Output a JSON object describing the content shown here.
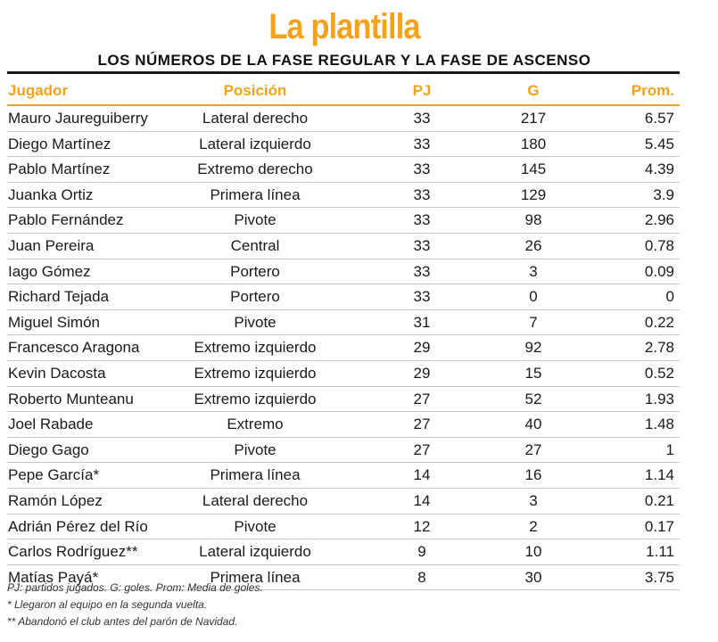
{
  "title": "La plantilla",
  "subtitle": "LOS NÚMEROS DE LA FASE REGULAR Y LA FASE DE ASCENSO",
  "colors": {
    "accent": "#f5a21b",
    "text": "#1a1a1a",
    "divider": "#c9c9c9"
  },
  "table": {
    "headers": {
      "player": "Jugador",
      "position": "Posición",
      "pj": "PJ",
      "g": "G",
      "prom": "Prom."
    },
    "rows": [
      {
        "player": "Mauro Jaureguiberry",
        "position": "Lateral derecho",
        "pj": "33",
        "g": "217",
        "prom": "6.57"
      },
      {
        "player": "Diego Martínez",
        "position": "Lateral izquierdo",
        "pj": "33",
        "g": "180",
        "prom": "5.45"
      },
      {
        "player": "Pablo Martínez",
        "position": "Extremo derecho",
        "pj": "33",
        "g": "145",
        "prom": "4.39"
      },
      {
        "player": "Juanka Ortiz",
        "position": "Primera línea",
        "pj": "33",
        "g": "129",
        "prom": "3.9"
      },
      {
        "player": "Pablo Fernández",
        "position": "Pivote",
        "pj": "33",
        "g": "98",
        "prom": "2.96"
      },
      {
        "player": "Juan Pereira",
        "position": "Central",
        "pj": "33",
        "g": "26",
        "prom": "0.78"
      },
      {
        "player": "Iago Gómez",
        "position": "Portero",
        "pj": "33",
        "g": "3",
        "prom": "0.09"
      },
      {
        "player": "Richard Tejada",
        "position": "Portero",
        "pj": "33",
        "g": "0",
        "prom": "0"
      },
      {
        "player": "Miguel Simón",
        "position": "Pivote",
        "pj": "31",
        "g": "7",
        "prom": "0.22"
      },
      {
        "player": "Francesco Aragona",
        "position": "Extremo izquierdo",
        "pj": "29",
        "g": "92",
        "prom": "2.78"
      },
      {
        "player": "Kevin Dacosta",
        "position": "Extremo izquierdo",
        "pj": "29",
        "g": "15",
        "prom": "0.52"
      },
      {
        "player": "Roberto Munteanu",
        "position": "Extremo izquierdo",
        "pj": "27",
        "g": "52",
        "prom": "1.93"
      },
      {
        "player": "Joel Rabade",
        "position": "Extremo",
        "pj": "27",
        "g": "40",
        "prom": "1.48"
      },
      {
        "player": "Diego Gago",
        "position": "Pivote",
        "pj": "27",
        "g": "27",
        "prom": "1"
      },
      {
        "player": "Pepe García*",
        "position": "Primera línea",
        "pj": "14",
        "g": "16",
        "prom": "1.14"
      },
      {
        "player": "Ramón López",
        "position": "Lateral derecho",
        "pj": "14",
        "g": "3",
        "prom": "0.21"
      },
      {
        "player": "Adrián Pérez del Río",
        "position": "Pivote",
        "pj": "12",
        "g": "2",
        "prom": "0.17"
      },
      {
        "player": "Carlos Rodríguez**",
        "position": "Lateral izquierdo",
        "pj": "9",
        "g": "10",
        "prom": "1.11"
      },
      {
        "player": "Matías Payá*",
        "position": "Primera línea",
        "pj": "8",
        "g": "30",
        "prom": "3.75"
      }
    ]
  },
  "notes": [
    "PJ: partidos jugados. G: goles. Prom: Media de goles.",
    "* Llegaron al equipo en la segunda vuelta.",
    "** Abandonó el club antes del parón de Navidad."
  ]
}
